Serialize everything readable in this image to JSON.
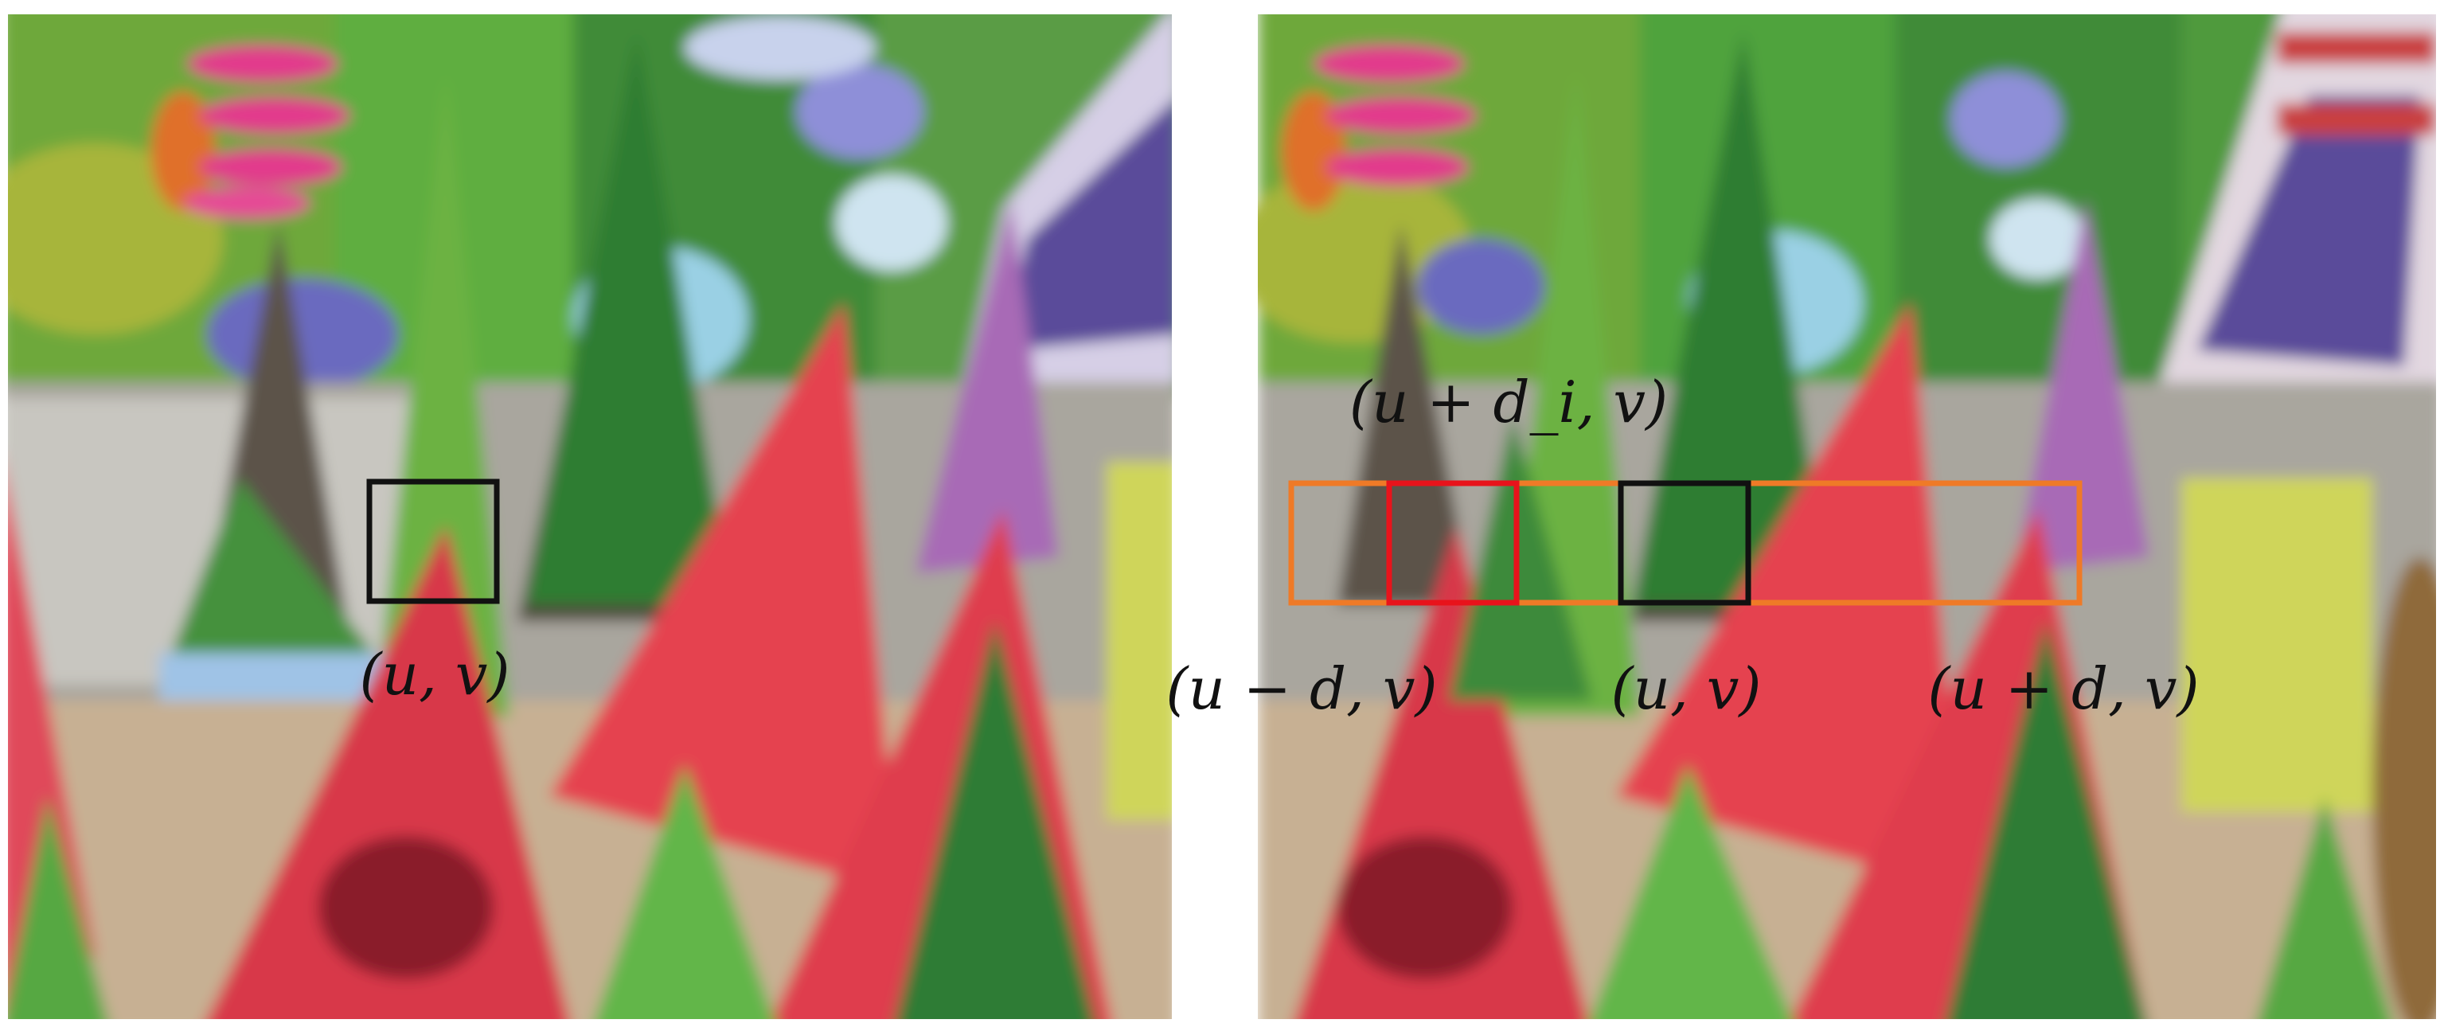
{
  "left_image": {
    "window_label": "(u, v)"
  },
  "right_image": {
    "candidate_label": "(u + d_i, v)",
    "range_start_label": "(u − d, v)",
    "reference_label": "(u, v)",
    "range_end_label": "(u + d, v)"
  },
  "colors": {
    "reference_window": "#111111",
    "candidate_window": "#e8131b",
    "search_range": "#ef7a27",
    "background": "#ffffff"
  }
}
